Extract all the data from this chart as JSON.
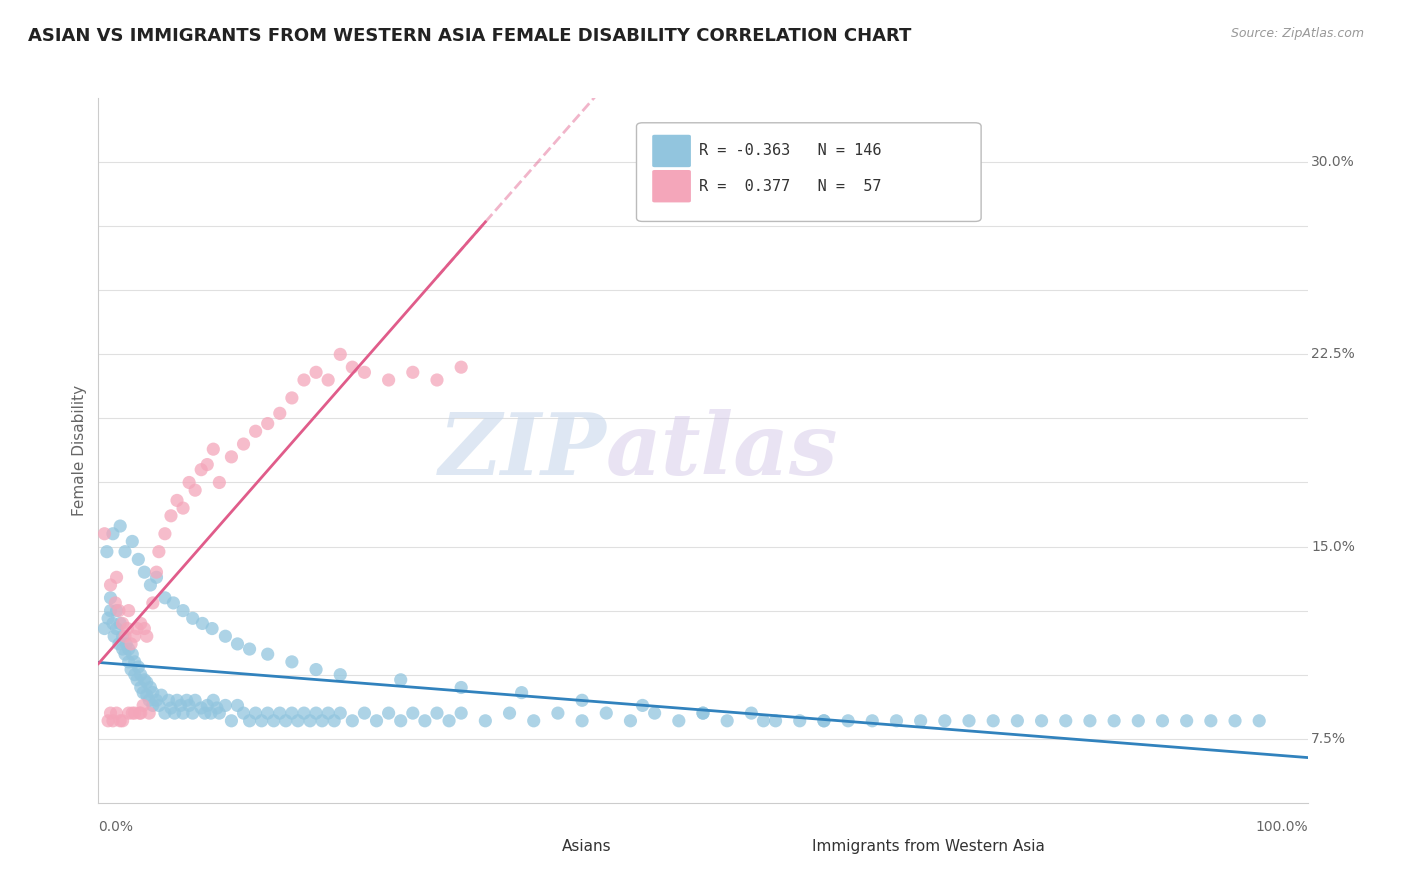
{
  "title": "ASIAN VS IMMIGRANTS FROM WESTERN ASIA FEMALE DISABILITY CORRELATION CHART",
  "source": "Source: ZipAtlas.com",
  "ylabel": "Female Disability",
  "xlim": [
    0.0,
    1.0
  ],
  "ylim": [
    0.05,
    0.325
  ],
  "blue_R": -0.363,
  "blue_N": 146,
  "pink_R": 0.377,
  "pink_N": 57,
  "blue_color": "#92c5de",
  "pink_color": "#f4a6ba",
  "blue_line_color": "#3182bd",
  "pink_line_color": "#e05c8a",
  "legend_label_blue": "Asians",
  "legend_label_pink": "Immigrants from Western Asia",
  "watermark_zip": "ZIP",
  "watermark_atlas": "atlas",
  "background_color": "#ffffff",
  "grid_color": "#e0e0e0",
  "blue_scatter_x": [
    0.005,
    0.008,
    0.01,
    0.01,
    0.012,
    0.013,
    0.015,
    0.015,
    0.017,
    0.018,
    0.02,
    0.02,
    0.022,
    0.023,
    0.025,
    0.025,
    0.027,
    0.028,
    0.03,
    0.03,
    0.032,
    0.033,
    0.035,
    0.035,
    0.037,
    0.038,
    0.04,
    0.04,
    0.042,
    0.043,
    0.045,
    0.045,
    0.048,
    0.05,
    0.052,
    0.055,
    0.058,
    0.06,
    0.063,
    0.065,
    0.068,
    0.07,
    0.073,
    0.075,
    0.078,
    0.08,
    0.085,
    0.088,
    0.09,
    0.093,
    0.095,
    0.098,
    0.1,
    0.105,
    0.11,
    0.115,
    0.12,
    0.125,
    0.13,
    0.135,
    0.14,
    0.145,
    0.15,
    0.155,
    0.16,
    0.165,
    0.17,
    0.175,
    0.18,
    0.185,
    0.19,
    0.195,
    0.2,
    0.21,
    0.22,
    0.23,
    0.24,
    0.25,
    0.26,
    0.27,
    0.28,
    0.29,
    0.3,
    0.32,
    0.34,
    0.36,
    0.38,
    0.4,
    0.42,
    0.44,
    0.46,
    0.48,
    0.5,
    0.52,
    0.54,
    0.56,
    0.58,
    0.6,
    0.62,
    0.64,
    0.66,
    0.68,
    0.7,
    0.72,
    0.74,
    0.76,
    0.78,
    0.8,
    0.82,
    0.84,
    0.86,
    0.88,
    0.9,
    0.92,
    0.94,
    0.96,
    0.007,
    0.012,
    0.018,
    0.022,
    0.028,
    0.033,
    0.038,
    0.043,
    0.048,
    0.055,
    0.062,
    0.07,
    0.078,
    0.086,
    0.094,
    0.105,
    0.115,
    0.125,
    0.14,
    0.16,
    0.18,
    0.2,
    0.25,
    0.3,
    0.35,
    0.4,
    0.45,
    0.5,
    0.55,
    0.6
  ],
  "blue_scatter_y": [
    0.118,
    0.122,
    0.125,
    0.13,
    0.12,
    0.115,
    0.118,
    0.125,
    0.112,
    0.12,
    0.11,
    0.115,
    0.108,
    0.112,
    0.105,
    0.11,
    0.102,
    0.108,
    0.1,
    0.105,
    0.098,
    0.103,
    0.095,
    0.1,
    0.093,
    0.098,
    0.092,
    0.097,
    0.09,
    0.095,
    0.088,
    0.093,
    0.09,
    0.088,
    0.092,
    0.085,
    0.09,
    0.087,
    0.085,
    0.09,
    0.088,
    0.085,
    0.09,
    0.088,
    0.085,
    0.09,
    0.087,
    0.085,
    0.088,
    0.085,
    0.09,
    0.087,
    0.085,
    0.088,
    0.082,
    0.088,
    0.085,
    0.082,
    0.085,
    0.082,
    0.085,
    0.082,
    0.085,
    0.082,
    0.085,
    0.082,
    0.085,
    0.082,
    0.085,
    0.082,
    0.085,
    0.082,
    0.085,
    0.082,
    0.085,
    0.082,
    0.085,
    0.082,
    0.085,
    0.082,
    0.085,
    0.082,
    0.085,
    0.082,
    0.085,
    0.082,
    0.085,
    0.082,
    0.085,
    0.082,
    0.085,
    0.082,
    0.085,
    0.082,
    0.085,
    0.082,
    0.082,
    0.082,
    0.082,
    0.082,
    0.082,
    0.082,
    0.082,
    0.082,
    0.082,
    0.082,
    0.082,
    0.082,
    0.082,
    0.082,
    0.082,
    0.082,
    0.082,
    0.082,
    0.082,
    0.082,
    0.148,
    0.155,
    0.158,
    0.148,
    0.152,
    0.145,
    0.14,
    0.135,
    0.138,
    0.13,
    0.128,
    0.125,
    0.122,
    0.12,
    0.118,
    0.115,
    0.112,
    0.11,
    0.108,
    0.105,
    0.102,
    0.1,
    0.098,
    0.095,
    0.093,
    0.09,
    0.088,
    0.085,
    0.082,
    0.082
  ],
  "pink_scatter_x": [
    0.005,
    0.008,
    0.01,
    0.012,
    0.014,
    0.015,
    0.017,
    0.018,
    0.02,
    0.022,
    0.024,
    0.025,
    0.027,
    0.028,
    0.03,
    0.032,
    0.034,
    0.035,
    0.037,
    0.038,
    0.04,
    0.042,
    0.045,
    0.048,
    0.05,
    0.055,
    0.06,
    0.065,
    0.07,
    0.075,
    0.08,
    0.085,
    0.09,
    0.095,
    0.1,
    0.11,
    0.12,
    0.13,
    0.14,
    0.15,
    0.16,
    0.17,
    0.18,
    0.19,
    0.2,
    0.21,
    0.22,
    0.24,
    0.26,
    0.28,
    0.3,
    0.01,
    0.015,
    0.02,
    0.025,
    0.03,
    0.035
  ],
  "pink_scatter_y": [
    0.155,
    0.082,
    0.135,
    0.082,
    0.128,
    0.138,
    0.125,
    0.082,
    0.12,
    0.115,
    0.118,
    0.125,
    0.112,
    0.085,
    0.115,
    0.118,
    0.085,
    0.12,
    0.088,
    0.118,
    0.115,
    0.085,
    0.128,
    0.14,
    0.148,
    0.155,
    0.162,
    0.168,
    0.165,
    0.175,
    0.172,
    0.18,
    0.182,
    0.188,
    0.175,
    0.185,
    0.19,
    0.195,
    0.198,
    0.202,
    0.208,
    0.215,
    0.218,
    0.215,
    0.225,
    0.22,
    0.218,
    0.215,
    0.218,
    0.215,
    0.22,
    0.085,
    0.085,
    0.082,
    0.085,
    0.085,
    0.085
  ]
}
